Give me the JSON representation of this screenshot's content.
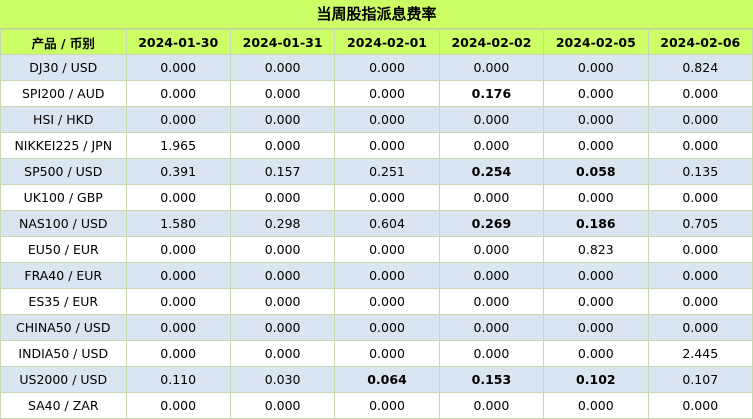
{
  "title": "当周股指派息费率",
  "headers": [
    "产品 / 币别",
    "2024-01-30",
    "2024-01-31",
    "2024-02-01",
    "2024-02-02",
    "2024-02-05",
    "2024-02-06"
  ],
  "rows": [
    {
      "product": "DJ30 / USD",
      "values": [
        "0.000",
        "0.000",
        "0.000",
        "0.000",
        "0.000",
        "0.824"
      ],
      "bold": []
    },
    {
      "product": "SPI200 / AUD",
      "values": [
        "0.000",
        "0.000",
        "0.000",
        "0.176",
        "0.000",
        "0.000"
      ],
      "bold": [
        3
      ]
    },
    {
      "product": "HSI / HKD",
      "values": [
        "0.000",
        "0.000",
        "0.000",
        "0.000",
        "0.000",
        "0.000"
      ],
      "bold": []
    },
    {
      "product": "NIKKEI225 / JPN",
      "values": [
        "1.965",
        "0.000",
        "0.000",
        "0.000",
        "0.000",
        "0.000"
      ],
      "bold": []
    },
    {
      "product": "SP500 / USD",
      "values": [
        "0.391",
        "0.157",
        "0.251",
        "0.254",
        "0.058",
        "0.135"
      ],
      "bold": [
        3,
        4
      ]
    },
    {
      "product": "UK100 / GBP",
      "values": [
        "0.000",
        "0.000",
        "0.000",
        "0.000",
        "0.000",
        "0.000"
      ],
      "bold": []
    },
    {
      "product": "NAS100 / USD",
      "values": [
        "1.580",
        "0.298",
        "0.604",
        "0.269",
        "0.186",
        "0.705"
      ],
      "bold": [
        3,
        4
      ]
    },
    {
      "product": "EU50 / EUR",
      "values": [
        "0.000",
        "0.000",
        "0.000",
        "0.000",
        "0.823",
        "0.000"
      ],
      "bold": []
    },
    {
      "product": "FRA40 / EUR",
      "values": [
        "0.000",
        "0.000",
        "0.000",
        "0.000",
        "0.000",
        "0.000"
      ],
      "bold": []
    },
    {
      "product": "ES35 / EUR",
      "values": [
        "0.000",
        "0.000",
        "0.000",
        "0.000",
        "0.000",
        "0.000"
      ],
      "bold": []
    },
    {
      "product": "CHINA50 / USD",
      "values": [
        "0.000",
        "0.000",
        "0.000",
        "0.000",
        "0.000",
        "0.000"
      ],
      "bold": []
    },
    {
      "product": "INDIA50 / USD",
      "values": [
        "0.000",
        "0.000",
        "0.000",
        "0.000",
        "0.000",
        "2.445"
      ],
      "bold": []
    },
    {
      "product": "US2000 / USD",
      "values": [
        "0.110",
        "0.030",
        "0.064",
        "0.153",
        "0.102",
        "0.107"
      ],
      "bold": [
        2,
        3,
        4
      ]
    },
    {
      "product": "SA40 / ZAR",
      "values": [
        "0.000",
        "0.000",
        "0.000",
        "0.000",
        "0.000",
        "0.000"
      ],
      "bold": []
    }
  ]
}
